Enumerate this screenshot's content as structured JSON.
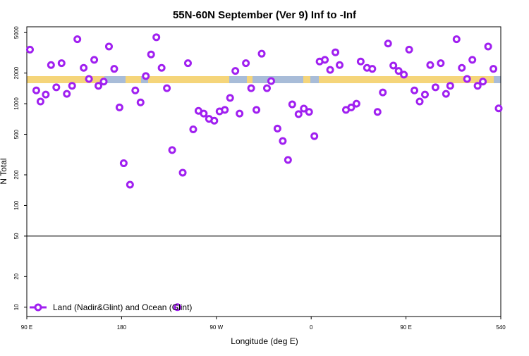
{
  "chart_data": {
    "type": "scatter",
    "title": "55N-60N September (Ver 9)   Inf to -Inf",
    "xlabel": "Longitude (deg E)",
    "ylabel": "N Total",
    "xlim": [
      90,
      540
    ],
    "ylim": [
      8.1,
      5700
    ],
    "ylog": true,
    "xticks": [
      {
        "value": 90,
        "label": "90 E"
      },
      180,
      {
        "value": 270,
        "label": "90 W"
      },
      {
        "value": 360,
        "label": "0"
      },
      {
        "value": 450,
        "label": "90 E"
      },
      540
    ],
    "yticks": [
      10,
      20,
      50,
      100,
      200,
      500,
      1000,
      2000,
      5000
    ],
    "hline": 50,
    "legend": "bottom-left",
    "series": [
      {
        "name": "Land (Nadir&Glint) and Ocean (Glint)",
        "color": "#a020f0",
        "x": [
          93,
          99,
          103,
          108,
          113,
          118,
          123,
          128,
          133,
          138,
          144,
          149,
          154,
          158,
          163,
          168,
          173,
          178,
          182,
          188,
          193,
          198,
          203,
          208,
          213,
          218,
          223,
          228,
          233,
          238,
          243,
          248,
          253,
          258,
          263,
          268,
          273,
          278,
          283,
          288,
          292,
          298,
          303,
          308,
          313,
          318,
          322,
          328,
          333,
          338,
          342,
          348,
          353,
          358,
          363,
          368,
          373,
          378,
          383,
          387,
          393,
          398,
          403,
          407,
          413,
          418,
          423,
          428,
          433,
          438,
          443,
          448,
          453,
          458,
          463,
          468,
          473,
          478,
          483,
          488,
          492,
          498,
          503,
          508,
          513,
          518,
          523,
          528,
          533,
          538
        ],
        "values": [
          3400,
          1350,
          1050,
          1230,
          2400,
          1450,
          2500,
          1250,
          1500,
          4300,
          2250,
          1750,
          2700,
          1500,
          1650,
          3650,
          2200,
          920,
          260,
          160,
          1350,
          1030,
          1870,
          3050,
          4500,
          2250,
          1420,
          350,
          10,
          210,
          2500,
          560,
          850,
          800,
          710,
          680,
          840,
          870,
          1140,
          2100,
          800,
          2500,
          1420,
          870,
          3100,
          1420,
          1670,
          570,
          430,
          280,
          985,
          790,
          895,
          830,
          480,
          2600,
          2700,
          2150,
          3200,
          2400,
          870,
          920,
          1000,
          2600,
          2250,
          2200,
          830,
          1290,
          3900,
          2370,
          2100,
          1930,
          3400,
          1350,
          1050,
          1230,
          2400,
          1450,
          2500,
          1250,
          1500,
          4300,
          2250,
          1750,
          2700,
          1500,
          1650,
          3650,
          2200,
          900
        ]
      }
    ]
  }
}
